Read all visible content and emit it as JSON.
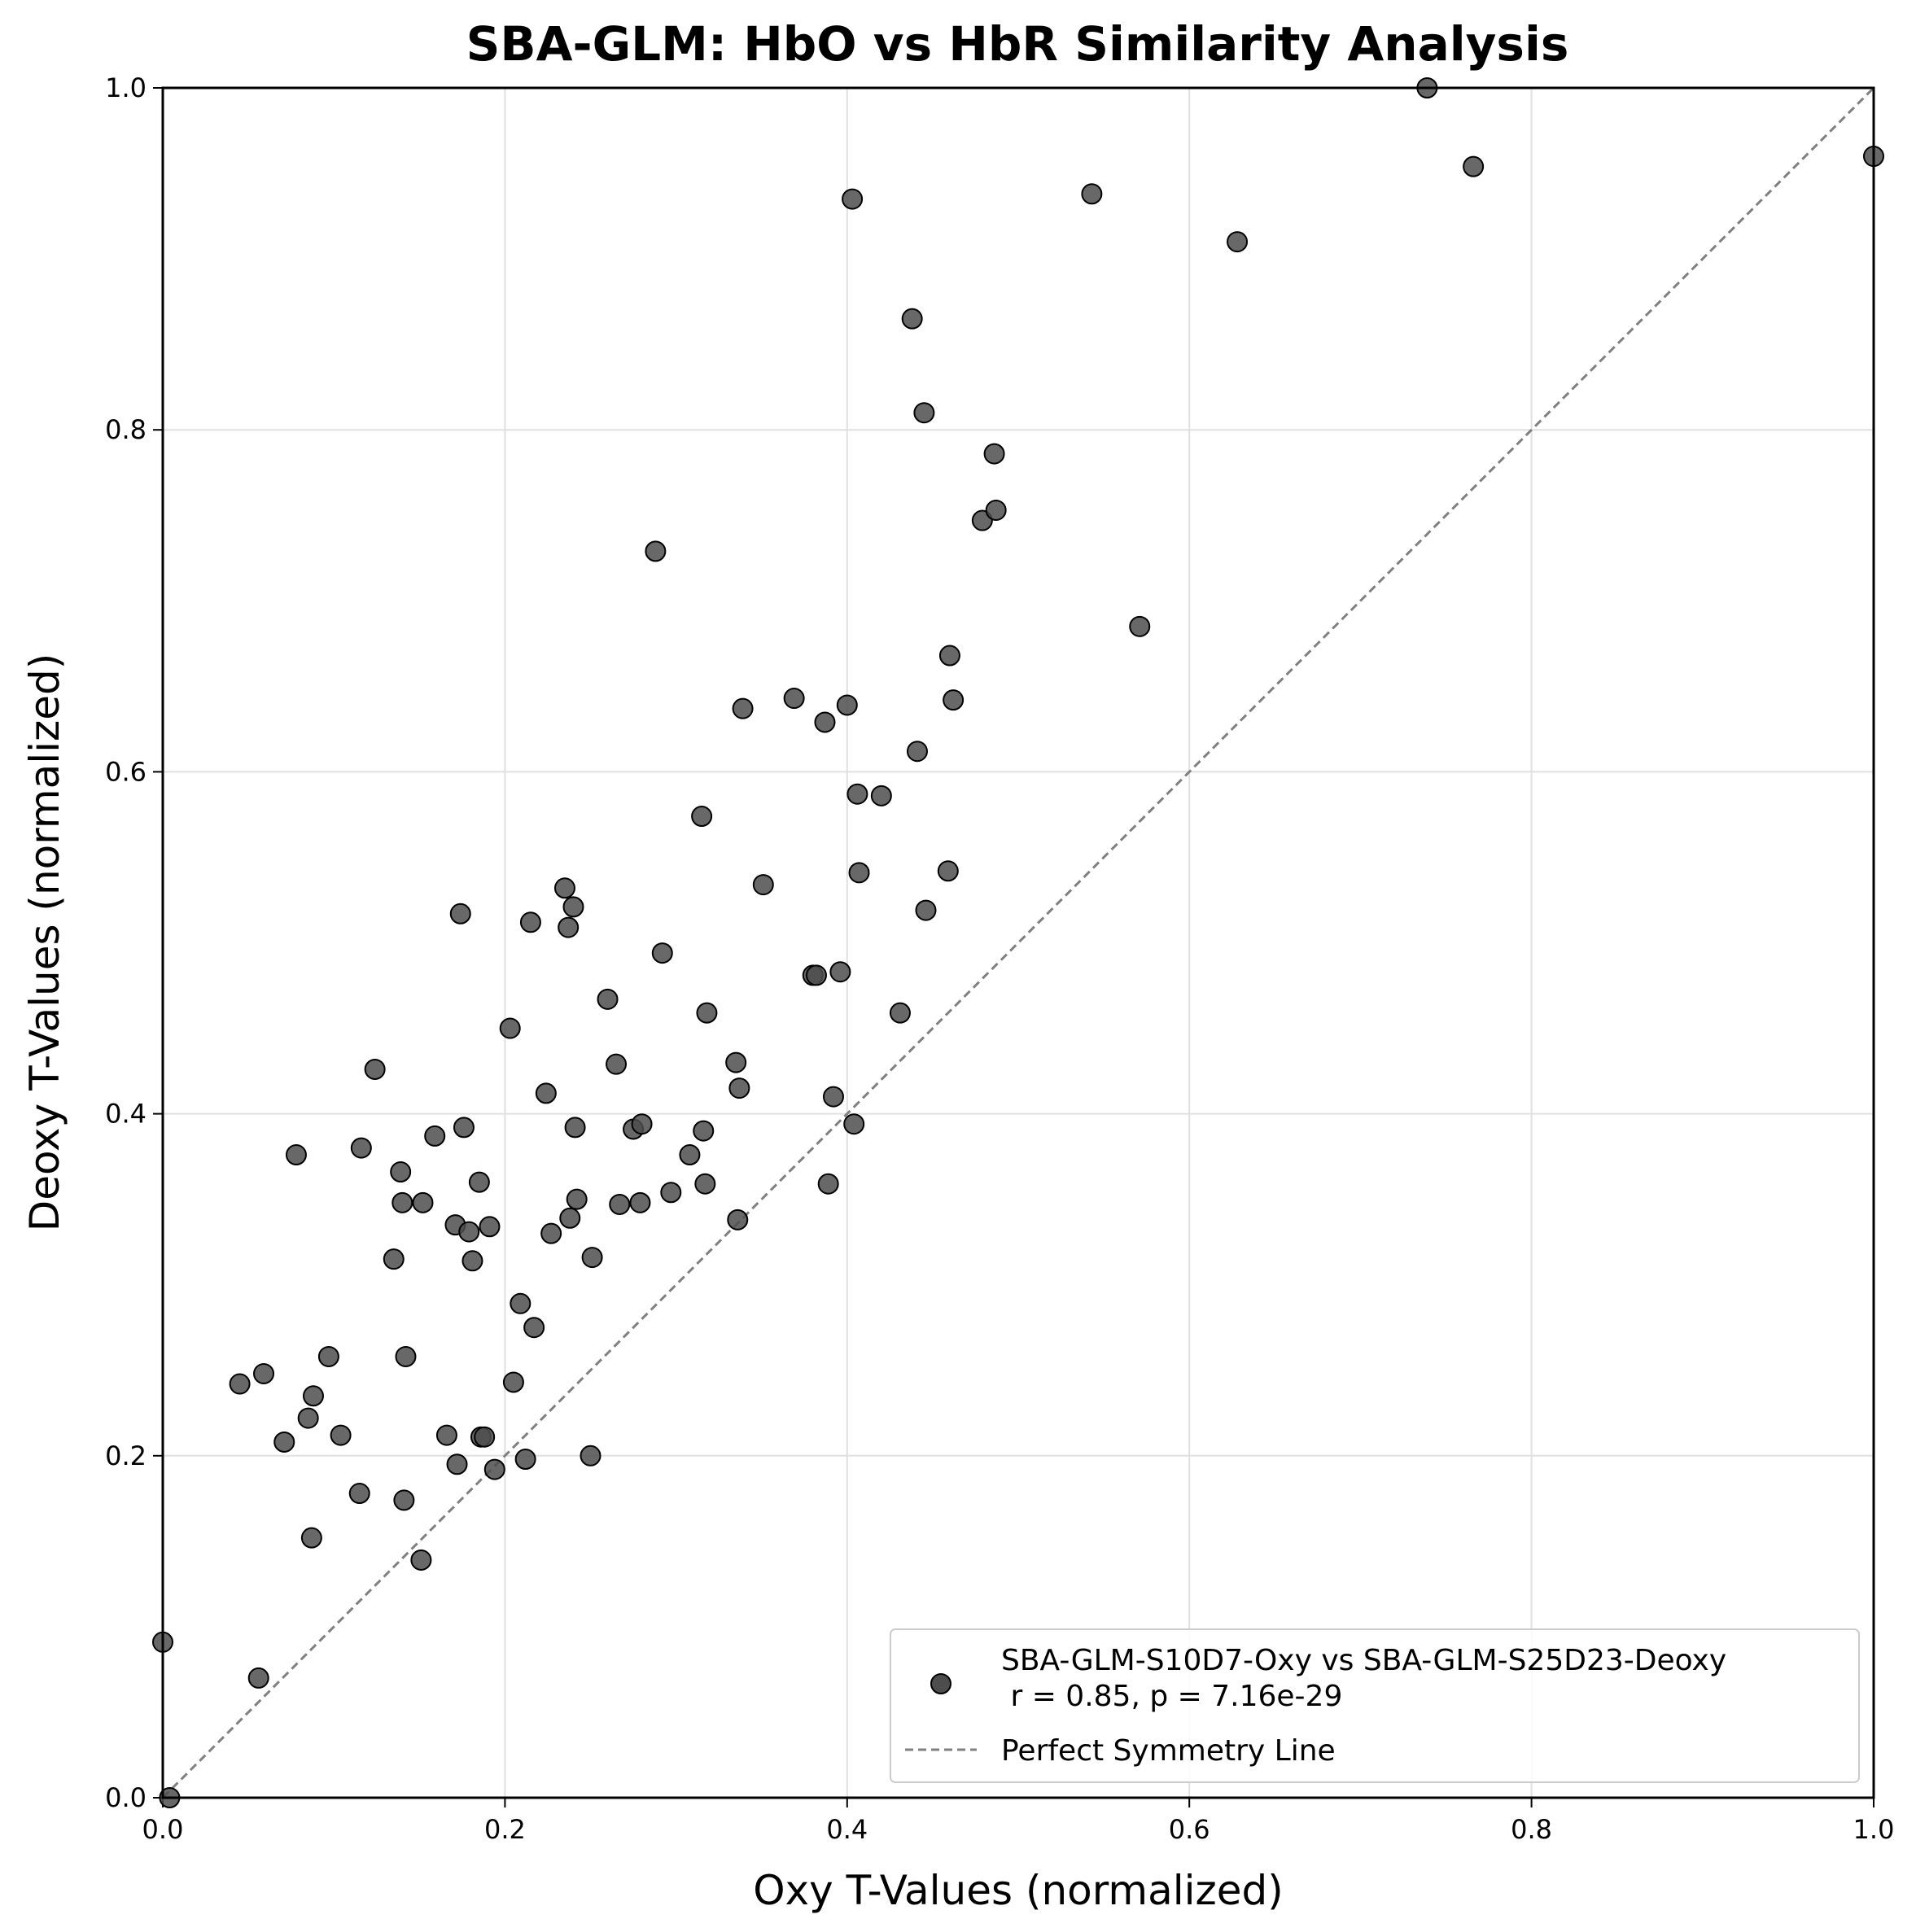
{
  "chart_data": {
    "type": "scatter",
    "title": "SBA-GLM: HbO vs HbR Similarity Analysis",
    "xlabel": "Oxy T-Values (normalized)",
    "ylabel": "Deoxy T-Values (normalized)",
    "xlim": [
      0.0,
      1.0
    ],
    "ylim": [
      0.0,
      1.0
    ],
    "xticks": [
      "0.0",
      "0.2",
      "0.4",
      "0.6",
      "0.8",
      "1.0"
    ],
    "yticks": [
      "0.0",
      "0.2",
      "0.4",
      "0.6",
      "0.8",
      "1.0"
    ],
    "grid": true,
    "legend_position": "lower-right",
    "colors": {
      "points": "#4d4d4d",
      "point_edge": "#000000",
      "diagonal": "#808080",
      "grid": "#e0e0e0"
    },
    "series": [
      {
        "name": "SBA-GLM-S10D7-Oxy vs SBA-GLM-S25D23-Deoxy",
        "stats_line": " r = 0.85, p = 7.16e-29",
        "points": [
          [
            0.0,
            0.091
          ],
          [
            0.004,
            0.0
          ],
          [
            0.045,
            0.242
          ],
          [
            0.056,
            0.07
          ],
          [
            0.059,
            0.248
          ],
          [
            0.071,
            0.208
          ],
          [
            0.078,
            0.376
          ],
          [
            0.085,
            0.222
          ],
          [
            0.087,
            0.152
          ],
          [
            0.088,
            0.235
          ],
          [
            0.097,
            0.258
          ],
          [
            0.104,
            0.212
          ],
          [
            0.115,
            0.178
          ],
          [
            0.116,
            0.38
          ],
          [
            0.124,
            0.426
          ],
          [
            0.135,
            0.315
          ],
          [
            0.139,
            0.366
          ],
          [
            0.14,
            0.348
          ],
          [
            0.141,
            0.174
          ],
          [
            0.142,
            0.258
          ],
          [
            0.151,
            0.139
          ],
          [
            0.152,
            0.348
          ],
          [
            0.159,
            0.387
          ],
          [
            0.166,
            0.212
          ],
          [
            0.171,
            0.335
          ],
          [
            0.172,
            0.195
          ],
          [
            0.174,
            0.517
          ],
          [
            0.176,
            0.392
          ],
          [
            0.179,
            0.331
          ],
          [
            0.181,
            0.314
          ],
          [
            0.185,
            0.36
          ],
          [
            0.186,
            0.211
          ],
          [
            0.188,
            0.211
          ],
          [
            0.191,
            0.334
          ],
          [
            0.194,
            0.192
          ],
          [
            0.203,
            0.45
          ],
          [
            0.205,
            0.243
          ],
          [
            0.209,
            0.289
          ],
          [
            0.212,
            0.198
          ],
          [
            0.215,
            0.512
          ],
          [
            0.217,
            0.275
          ],
          [
            0.224,
            0.412
          ],
          [
            0.227,
            0.33
          ],
          [
            0.235,
            0.532
          ],
          [
            0.237,
            0.509
          ],
          [
            0.238,
            0.339
          ],
          [
            0.24,
            0.521
          ],
          [
            0.241,
            0.392
          ],
          [
            0.242,
            0.35
          ],
          [
            0.25,
            0.2
          ],
          [
            0.251,
            0.316
          ],
          [
            0.26,
            0.467
          ],
          [
            0.265,
            0.429
          ],
          [
            0.267,
            0.347
          ],
          [
            0.275,
            0.391
          ],
          [
            0.279,
            0.348
          ],
          [
            0.28,
            0.394
          ],
          [
            0.288,
            0.729
          ],
          [
            0.292,
            0.494
          ],
          [
            0.297,
            0.354
          ],
          [
            0.308,
            0.376
          ],
          [
            0.315,
            0.574
          ],
          [
            0.316,
            0.39
          ],
          [
            0.317,
            0.359
          ],
          [
            0.318,
            0.459
          ],
          [
            0.335,
            0.43
          ],
          [
            0.336,
            0.338
          ],
          [
            0.337,
            0.415
          ],
          [
            0.339,
            0.637
          ],
          [
            0.351,
            0.534
          ],
          [
            0.369,
            0.643
          ],
          [
            0.38,
            0.481
          ],
          [
            0.382,
            0.481
          ],
          [
            0.387,
            0.629
          ],
          [
            0.389,
            0.359
          ],
          [
            0.392,
            0.41
          ],
          [
            0.396,
            0.483
          ],
          [
            0.4,
            0.639
          ],
          [
            0.403,
            0.935
          ],
          [
            0.404,
            0.394
          ],
          [
            0.406,
            0.587
          ],
          [
            0.407,
            0.541
          ],
          [
            0.42,
            0.586
          ],
          [
            0.431,
            0.459
          ],
          [
            0.438,
            0.865
          ],
          [
            0.441,
            0.612
          ],
          [
            0.445,
            0.81
          ],
          [
            0.446,
            0.519
          ],
          [
            0.459,
            0.542
          ],
          [
            0.46,
            0.668
          ],
          [
            0.462,
            0.642
          ],
          [
            0.479,
            0.747
          ],
          [
            0.486,
            0.786
          ],
          [
            0.487,
            0.753
          ],
          [
            0.543,
            0.938
          ],
          [
            0.571,
            0.685
          ],
          [
            0.628,
            0.91
          ],
          [
            0.739,
            1.0
          ],
          [
            0.766,
            0.954
          ],
          [
            1.0,
            0.96
          ]
        ]
      },
      {
        "name": "Perfect Symmetry Line",
        "line": [
          [
            0.0,
            0.0
          ],
          [
            1.0,
            1.0
          ]
        ]
      }
    ]
  }
}
